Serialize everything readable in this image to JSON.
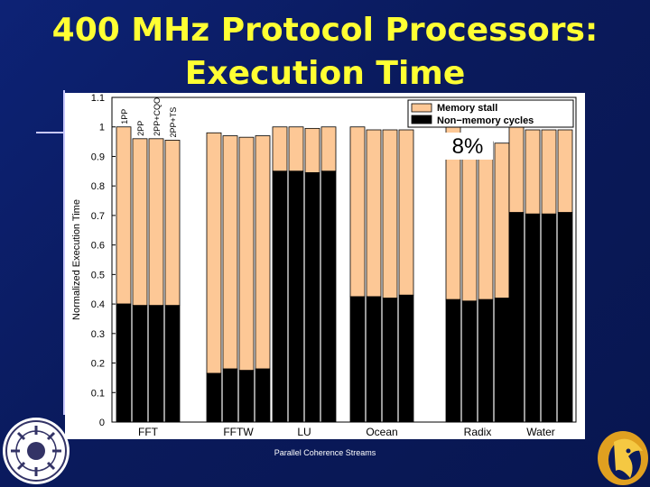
{
  "slide": {
    "title_line1": "400 MHz Protocol Processors:",
    "title_line2": "Execution Time",
    "footer": "Parallel Coherence Streams",
    "colors": {
      "background": "#0a1a5c",
      "title": "#ffff33",
      "stall": "#fdc896",
      "nonmem": "#000000"
    }
  },
  "chart_data": {
    "type": "bar",
    "stacked": true,
    "ylabel": "Normalized Execution Time",
    "ylim": [
      0,
      1.1
    ],
    "yticks": [
      "0",
      "0.1",
      "0.2",
      "0.3",
      "0.4",
      "0.5",
      "0.6",
      "0.7",
      "0.8",
      "0.9",
      "1",
      "1.1"
    ],
    "categories": [
      "FFT",
      "FFTW",
      "LU",
      "Ocean",
      "Radix",
      "Water"
    ],
    "configs": [
      "1PP",
      "2PP",
      "2PP+CQO",
      "2PP+TS"
    ],
    "legend": [
      "Memory stall",
      "Non−memory cycles"
    ],
    "legend_position": "top-right",
    "annotation": "8%",
    "totals": [
      [
        1.0,
        0.96,
        0.96,
        0.955
      ],
      [
        0.98,
        0.97,
        0.965,
        0.97
      ],
      [
        1.0,
        1.0,
        0.995,
        1.0
      ],
      [
        1.0,
        0.99,
        0.99,
        0.99
      ],
      [
        1.0,
        0.935,
        0.95,
        0.945
      ],
      [
        1.0,
        0.99,
        0.99,
        0.99
      ]
    ],
    "nonmemory": [
      [
        0.4,
        0.395,
        0.395,
        0.395
      ],
      [
        0.165,
        0.18,
        0.175,
        0.18
      ],
      [
        0.85,
        0.85,
        0.845,
        0.85
      ],
      [
        0.425,
        0.425,
        0.42,
        0.43
      ],
      [
        0.415,
        0.41,
        0.415,
        0.42
      ],
      [
        0.71,
        0.705,
        0.705,
        0.71
      ]
    ]
  }
}
